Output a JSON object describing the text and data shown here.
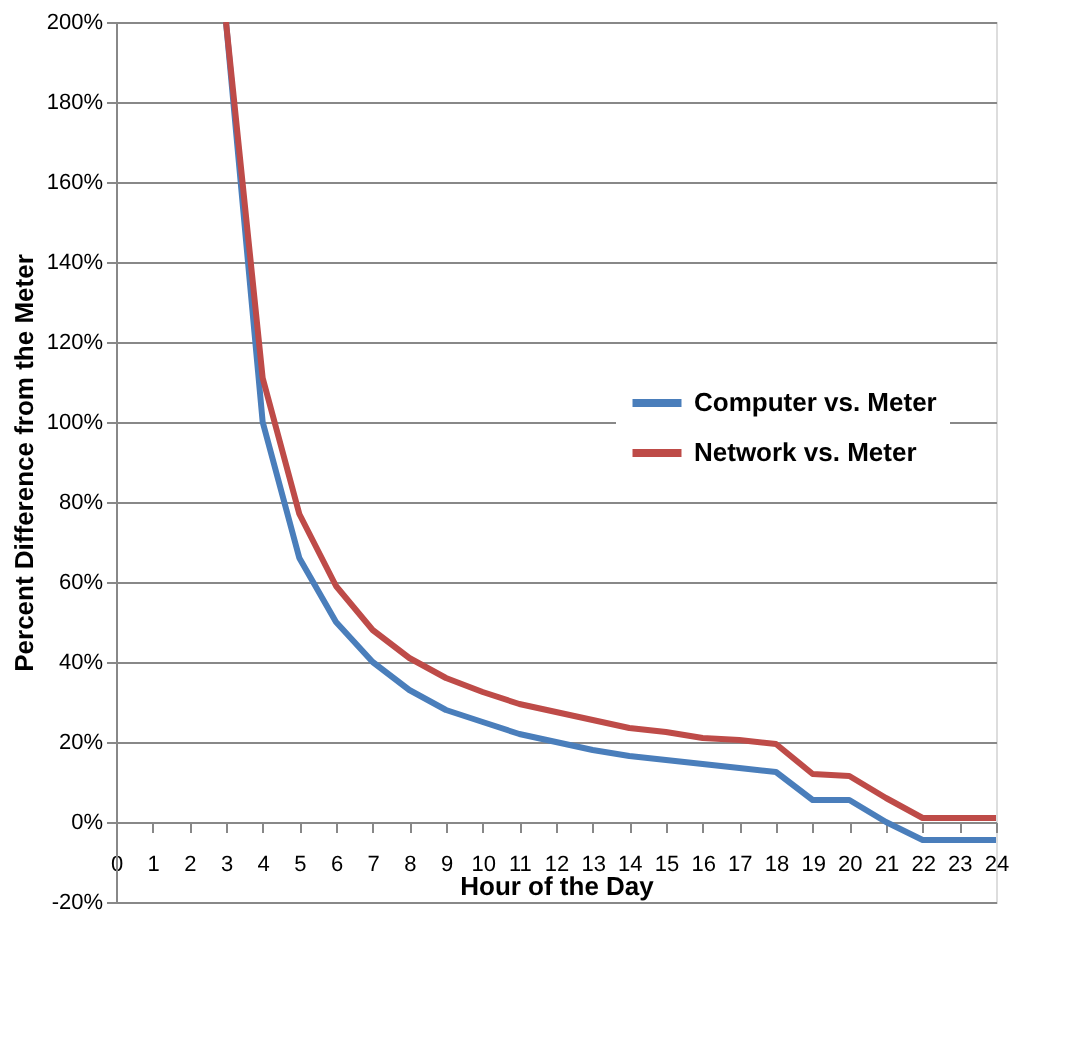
{
  "chart_data": {
    "type": "line",
    "xlabel": "Hour of the Day",
    "ylabel": "Percent Difference from the Meter",
    "x": [
      3,
      4,
      5,
      6,
      7,
      8,
      9,
      10,
      11,
      12,
      13,
      14,
      15,
      16,
      17,
      18,
      19,
      20,
      21,
      22,
      23,
      24
    ],
    "series": [
      {
        "name": "Computer vs. Meter",
        "color": "#4a7ebb",
        "values": [
          200,
          100,
          66,
          50,
          40,
          33,
          28,
          25,
          22,
          20,
          18,
          16.5,
          15.5,
          14.5,
          13.5,
          12.5,
          5.5,
          5.5,
          0,
          -4.5,
          -4.5,
          -4.5
        ]
      },
      {
        "name": "Network vs. Meter",
        "color": "#be4b48",
        "values": [
          200,
          111,
          77,
          59,
          48,
          41,
          36,
          32.5,
          29.5,
          27.5,
          25.5,
          23.5,
          22.5,
          21,
          20.5,
          19.5,
          12,
          11.5,
          6,
          1,
          1,
          1
        ]
      }
    ],
    "xlim": [
      0,
      24
    ],
    "xticks": [
      0,
      1,
      2,
      3,
      4,
      5,
      6,
      7,
      8,
      9,
      10,
      11,
      12,
      13,
      14,
      15,
      16,
      17,
      18,
      19,
      20,
      21,
      22,
      23,
      24
    ],
    "ylim": [
      -20,
      200
    ],
    "yticks": [
      {
        "value": -20,
        "label": "-20%"
      },
      {
        "value": 0,
        "label": "0%"
      },
      {
        "value": 20,
        "label": "20%"
      },
      {
        "value": 40,
        "label": "40%"
      },
      {
        "value": 60,
        "label": "60%"
      },
      {
        "value": 80,
        "label": "80%"
      },
      {
        "value": 100,
        "label": "100%"
      },
      {
        "value": 120,
        "label": "120%"
      },
      {
        "value": 140,
        "label": "140%"
      },
      {
        "value": 160,
        "label": "160%"
      },
      {
        "value": 180,
        "label": "180%"
      },
      {
        "value": 200,
        "label": "200%"
      }
    ],
    "grid": "y",
    "legend": "right",
    "marker": "none",
    "line_style": "solid"
  }
}
